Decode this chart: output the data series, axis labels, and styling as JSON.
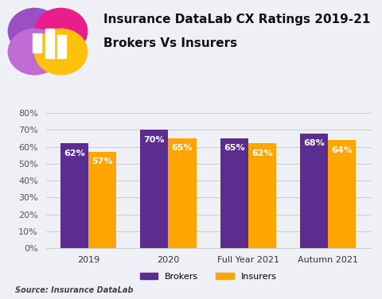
{
  "title_line1": "Insurance DataLab CX Ratings 2019-21",
  "title_line2": "Brokers Vs Insurers",
  "categories": [
    "2019",
    "2020",
    "Full Year 2021",
    "Autumn 2021"
  ],
  "brokers": [
    0.62,
    0.7,
    0.65,
    0.68
  ],
  "insurers": [
    0.57,
    0.65,
    0.62,
    0.64
  ],
  "broker_labels": [
    "62%",
    "70%",
    "65%",
    "68%"
  ],
  "insurer_labels": [
    "57%",
    "65%",
    "62%",
    "64%"
  ],
  "broker_color": "#5B2D8E",
  "insurer_color": "#FFA500",
  "background_color": "#EEF0F5",
  "ylim": [
    0,
    0.85
  ],
  "yticks": [
    0.0,
    0.1,
    0.2,
    0.3,
    0.4,
    0.5,
    0.6,
    0.7,
    0.8
  ],
  "ytick_labels": [
    "0%",
    "10%",
    "20%",
    "30%",
    "40%",
    "50%",
    "60%",
    "70%",
    "80%"
  ],
  "source_text": "Source: Insurance DataLab",
  "legend_labels": [
    "Brokers",
    "Insurers"
  ],
  "bar_width": 0.35,
  "label_fontsize": 8,
  "tick_fontsize": 8,
  "title_fontsize": 11,
  "logo_colors": {
    "purple": "#9B4FC5",
    "pink": "#E91E8C",
    "yellow": "#FFC107",
    "lavender": "#C06AD4"
  }
}
